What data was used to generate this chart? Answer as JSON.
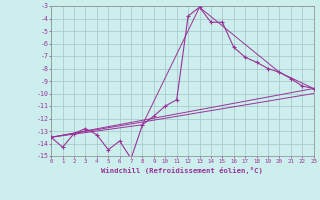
{
  "xlabel": "Windchill (Refroidissement éolien,°C)",
  "bg_color": "#cceeed",
  "grid_color": "#aacccc",
  "line_color": "#993399",
  "xmin": 0,
  "xmax": 23,
  "ymin": -15,
  "ymax": -3,
  "series": [
    {
      "x": [
        0,
        1,
        2,
        3,
        4,
        5,
        6,
        7,
        8,
        9,
        10,
        11,
        12,
        13,
        14,
        15,
        16,
        17,
        18,
        19,
        20,
        21,
        22,
        23
      ],
      "y": [
        -13.5,
        -14.3,
        -13.2,
        -12.8,
        -13.3,
        -14.5,
        -13.8,
        -15.2,
        -12.5,
        -11.8,
        -11.0,
        -10.5,
        -3.8,
        -3.1,
        -4.3,
        -4.3,
        -6.3,
        -7.1,
        -7.5,
        -8.0,
        -8.3,
        -8.8,
        -9.4,
        -9.6
      ],
      "marker": true
    },
    {
      "x": [
        0,
        23
      ],
      "y": [
        -13.5,
        -9.6
      ],
      "marker": false
    },
    {
      "x": [
        0,
        23
      ],
      "y": [
        -13.5,
        -10.0
      ],
      "marker": false
    },
    {
      "x": [
        0,
        8,
        13,
        20,
        23
      ],
      "y": [
        -13.5,
        -12.5,
        -3.1,
        -8.3,
        -9.6
      ],
      "marker": false
    }
  ]
}
